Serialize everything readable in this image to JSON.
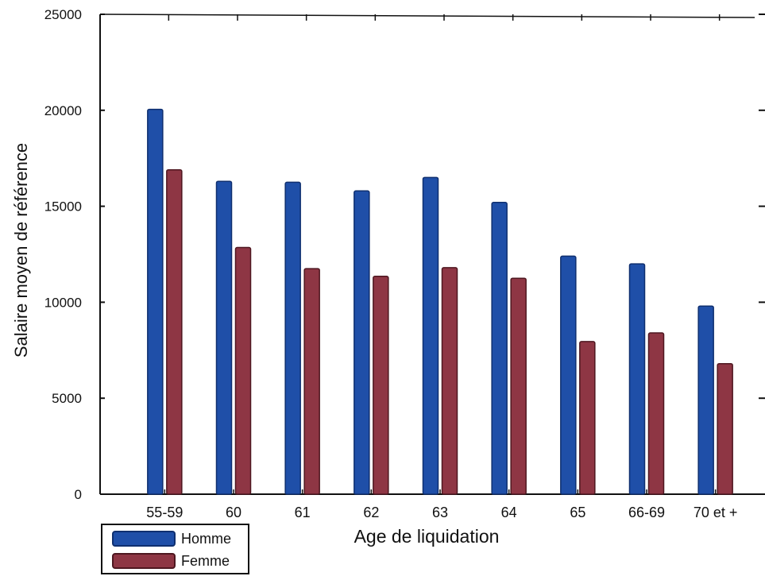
{
  "chart_data": {
    "type": "bar",
    "title": "",
    "xlabel": "Age de liquidation",
    "ylabel": "Salaire moyen de référence",
    "categories": [
      "55-59",
      "60",
      "61",
      "62",
      "63",
      "64",
      "65",
      "66-69",
      "70 et +"
    ],
    "series": [
      {
        "name": "Homme",
        "color": "#1f4fa8",
        "values": [
          20050,
          16300,
          16250,
          15800,
          16500,
          15200,
          12400,
          12000,
          9800
        ]
      },
      {
        "name": "Femme",
        "color": "#8e3644",
        "values": [
          16900,
          12850,
          11750,
          11350,
          11800,
          11250,
          7950,
          8400,
          6800
        ]
      }
    ],
    "ylim": [
      0,
      25000
    ],
    "yticks": [
      0,
      5000,
      10000,
      15000,
      20000,
      25000
    ],
    "grid": false,
    "legend_position": "bottom-left"
  }
}
